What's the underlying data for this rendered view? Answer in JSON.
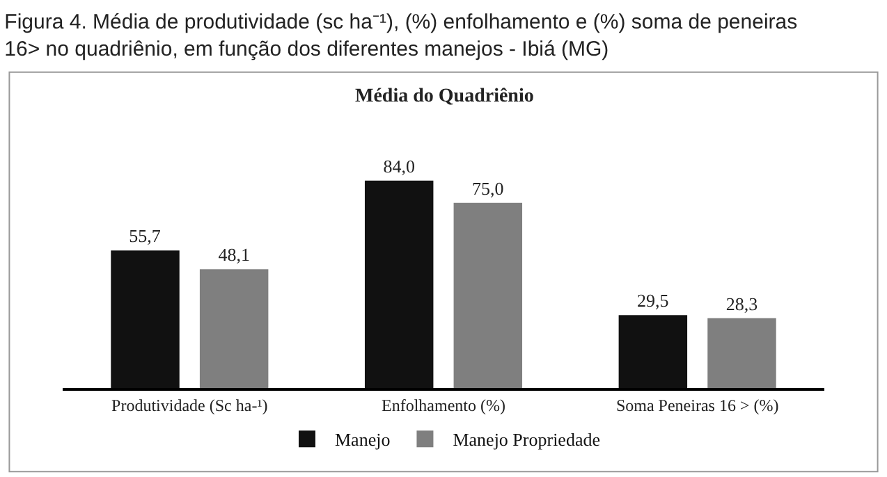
{
  "chart_data": {
    "type": "bar",
    "title": "Figura 4. Média de produtividade (sc ha⁻¹), (%) enfolhamento e (%) soma de peneiras 16> no quadriênio, em função dos diferentes manejos - Ibiá (MG)",
    "subtitle": "Média do Quadriênio",
    "categories": [
      "Produtividade (Sc ha-¹)",
      "Enfolhamento (%)",
      "Soma Peneiras 16 > (%)"
    ],
    "series": [
      {
        "name": "Manejo",
        "color": "#111111",
        "values": [
          55.7,
          84.0,
          29.5
        ],
        "value_labels": [
          "55,7",
          "84,0",
          "29,5"
        ]
      },
      {
        "name": "Manejo Propriedade",
        "color": "#7f7f7f",
        "values": [
          48.1,
          75.0,
          28.3
        ],
        "value_labels": [
          "48,1",
          "75,0",
          "28,3"
        ]
      }
    ],
    "legend": "bottom"
  }
}
